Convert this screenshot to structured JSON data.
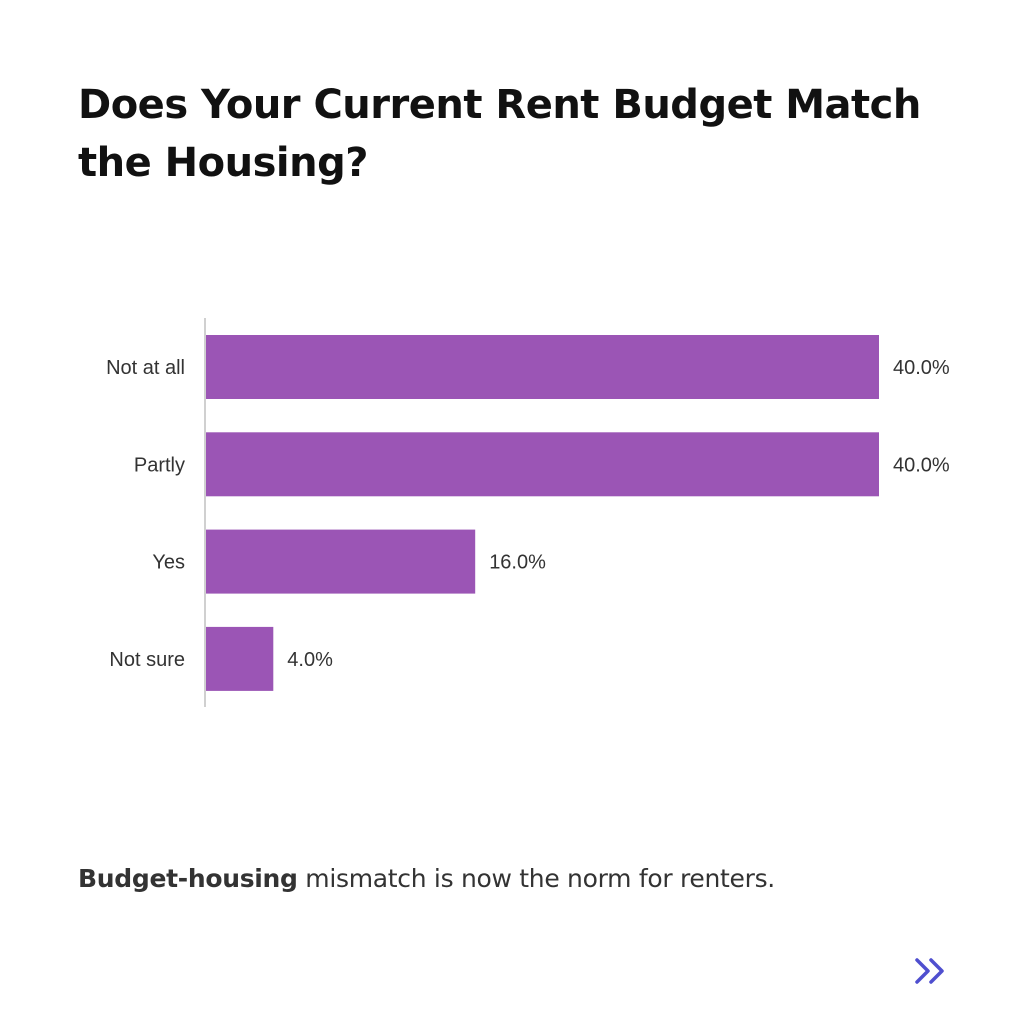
{
  "title": "Does Your Current Rent Budget Match the Housing?",
  "caption": {
    "bold": "Budget-housing",
    "rest": " mismatch is now the norm for renters."
  },
  "colors": {
    "bar": "#9b55b5",
    "axis": "#d0d0d0",
    "accent": "#4f4fcf"
  },
  "next_icon": "double-chevron-right-icon",
  "chart_data": {
    "type": "bar",
    "orientation": "horizontal",
    "categories": [
      "Not at all",
      "Partly",
      "Yes",
      "Not sure"
    ],
    "values": [
      40.0,
      40.0,
      16.0,
      4.0
    ],
    "labels": [
      "40.0%",
      "40.0%",
      "16.0%",
      "4.0%"
    ],
    "xlim": [
      0,
      40
    ],
    "unit": "%",
    "grid": false,
    "legend": "none"
  }
}
